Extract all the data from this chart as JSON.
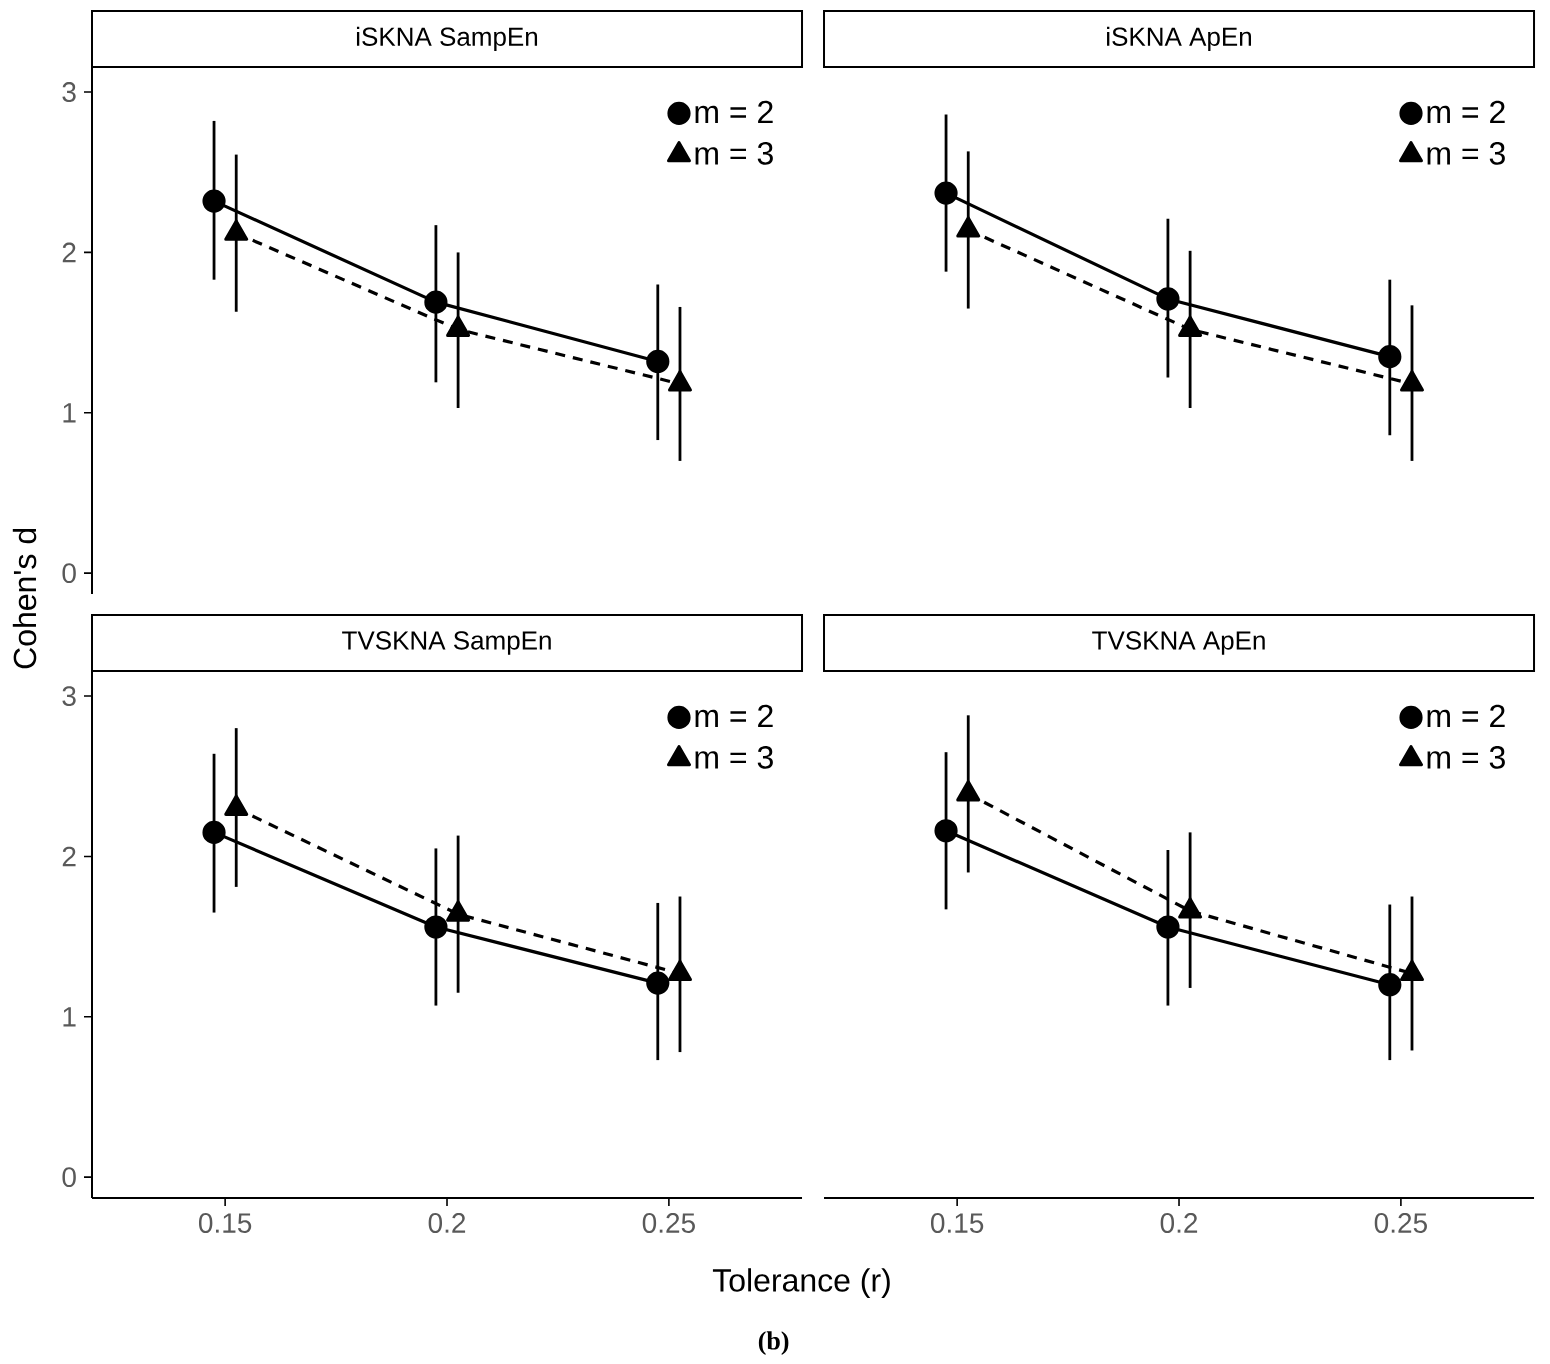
{
  "chart_data": [
    {
      "type": "line",
      "title": "iSKNA SampEn",
      "ylim": [
        -0.13,
        3.15
      ],
      "xticks": [
        0.15,
        0.2,
        0.25
      ],
      "yticks": [
        0,
        1,
        2,
        3
      ],
      "legend": "top right",
      "tick_labels": "y",
      "series": [
        {
          "name": "m = 2",
          "color": "#000000",
          "marker": "circle",
          "line_style": "solid",
          "x": [
            0.1475,
            0.1975,
            0.2475
          ],
          "values": [
            2.32,
            1.69,
            1.32
          ],
          "errors": [
            [
              1.83,
              2.82
            ],
            [
              1.19,
              2.17
            ],
            [
              0.83,
              1.8
            ]
          ]
        },
        {
          "name": "m = 3",
          "color": "#000000",
          "marker": "triangle",
          "line_style": "dashed",
          "x": [
            0.1525,
            0.2025,
            0.2525
          ],
          "values": [
            2.12,
            1.52,
            1.18
          ],
          "errors": [
            [
              1.63,
              2.61
            ],
            [
              1.03,
              2.0
            ],
            [
              0.7,
              1.66
            ]
          ]
        }
      ]
    },
    {
      "type": "line",
      "title": "iSKNA ApEn",
      "xticks": [
        0.15,
        0.2,
        0.25
      ],
      "yticks": [
        0,
        1,
        2,
        3
      ],
      "legend": "top right",
      "tick_labels": false,
      "series": [
        {
          "name": "m = 2",
          "color": "#000000",
          "marker": "circle",
          "line_style": "solid",
          "x": [
            0.1475,
            0.1975,
            0.2475
          ],
          "values": [
            2.37,
            1.71,
            1.35
          ],
          "errors": [
            [
              1.88,
              2.86
            ],
            [
              1.22,
              2.21
            ],
            [
              0.86,
              1.83
            ]
          ]
        },
        {
          "name": "m = 3",
          "color": "#000000",
          "marker": "triangle",
          "line_style": "dashed",
          "x": [
            0.1525,
            0.2025,
            0.2525
          ],
          "values": [
            2.14,
            1.52,
            1.18
          ],
          "errors": [
            [
              1.65,
              2.63
            ],
            [
              1.03,
              2.01
            ],
            [
              0.7,
              1.67
            ]
          ]
        }
      ]
    },
    {
      "type": "line",
      "title": "TVSKNA SampEn",
      "xlabel": "Tolerance (r)",
      "ylabel": "Cohen's d",
      "annotations": [
        "(b)"
      ],
      "xlim": [
        0.12,
        0.28
      ],
      "ylim": [
        -0.13,
        3.15
      ],
      "xticks": [
        0.15,
        0.2,
        0.25
      ],
      "yticks": [
        0,
        1,
        2,
        3
      ],
      "legend": "top right",
      "series": [
        {
          "name": "m = 2",
          "color": "#000000",
          "marker": "circle",
          "line_style": "solid",
          "x": [
            0.1475,
            0.1975,
            0.2475
          ],
          "values": [
            2.15,
            1.56,
            1.21
          ],
          "errors": [
            [
              1.65,
              2.64
            ],
            [
              1.07,
              2.05
            ],
            [
              0.73,
              1.71
            ]
          ]
        },
        {
          "name": "m = 3",
          "color": "#000000",
          "marker": "triangle",
          "line_style": "dashed",
          "x": [
            0.1525,
            0.2025,
            0.2525
          ],
          "values": [
            2.3,
            1.64,
            1.27
          ],
          "errors": [
            [
              1.81,
              2.8
            ],
            [
              1.15,
              2.13
            ],
            [
              0.78,
              1.75
            ]
          ]
        }
      ]
    },
    {
      "type": "line",
      "title": "TVSKNA ApEn",
      "xlim": [
        0.12,
        0.28
      ],
      "xticks": [
        0.15,
        0.2,
        0.25
      ],
      "yticks": [
        0,
        1,
        2,
        3
      ],
      "legend": "top right",
      "tick_labels": "x",
      "series": [
        {
          "name": "m = 2",
          "color": "#000000",
          "marker": "circle",
          "line_style": "solid",
          "x": [
            0.1475,
            0.1975,
            0.2475
          ],
          "values": [
            2.16,
            1.56,
            1.2
          ],
          "errors": [
            [
              1.67,
              2.65
            ],
            [
              1.07,
              2.04
            ],
            [
              0.73,
              1.7
            ]
          ]
        },
        {
          "name": "m = 3",
          "color": "#000000",
          "marker": "triangle",
          "line_style": "dashed",
          "x": [
            0.1525,
            0.2025,
            0.2525
          ],
          "values": [
            2.39,
            1.66,
            1.27
          ],
          "errors": [
            [
              1.9,
              2.88
            ],
            [
              1.18,
              2.15
            ],
            [
              0.79,
              1.75
            ]
          ]
        }
      ]
    }
  ]
}
